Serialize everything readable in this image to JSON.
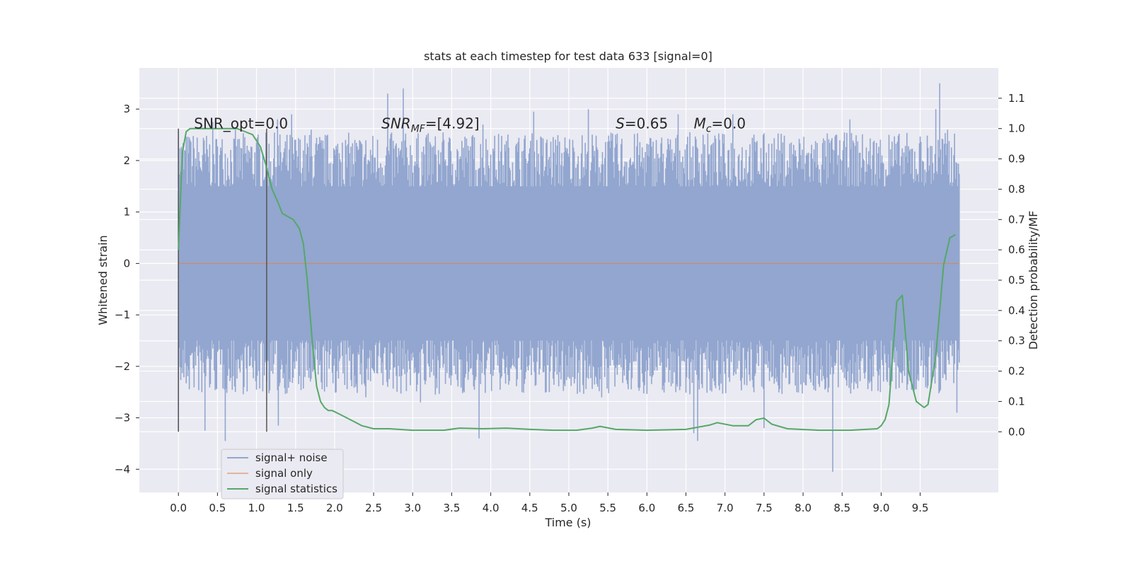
{
  "chart_data": {
    "type": "line",
    "title": "stats at each timestep for test data 633 [signal=0]",
    "xlabel": "Time (s)",
    "ylabel_left": "Whitened strain",
    "ylabel_right": "Detection probability/MF",
    "xlim": [
      -0.5,
      10.5
    ],
    "ylim_left": [
      -4.45,
      3.8
    ],
    "ylim_right": [
      -0.2,
      1.2
    ],
    "x_ticks": [
      "0.0",
      "0.5",
      "1.0",
      "1.5",
      "2.0",
      "2.5",
      "3.0",
      "3.5",
      "4.0",
      "4.5",
      "5.0",
      "5.5",
      "6.0",
      "6.5",
      "7.0",
      "7.5",
      "8.0",
      "8.5",
      "9.0",
      "9.5"
    ],
    "y_ticks_left": [
      "−4",
      "−3",
      "−2",
      "−1",
      "0",
      "1",
      "2",
      "3"
    ],
    "y_ticks_right": [
      "0.0",
      "0.1",
      "0.2",
      "0.3",
      "0.4",
      "0.5",
      "0.6",
      "0.7",
      "0.8",
      "0.9",
      "1.0",
      "1.1"
    ],
    "grid": true,
    "legend_position": "lower-left",
    "series": [
      {
        "name": "signal+ noise",
        "axis": "left",
        "color": "#92a6cf",
        "x_range": [
          0.0,
          10.0
        ],
        "typical_band": [
          -1.5,
          1.5
        ],
        "peaks": [
          [
            0.0,
            2.6
          ],
          [
            0.0,
            -3.25
          ],
          [
            0.15,
            2.4
          ],
          [
            0.3,
            -2.5
          ],
          [
            0.34,
            -3.25
          ],
          [
            0.44,
            2.75
          ],
          [
            0.6,
            -3.45
          ],
          [
            0.73,
            2.6
          ],
          [
            0.9,
            2.2
          ],
          [
            1.15,
            -1.9
          ],
          [
            1.27,
            2.8
          ],
          [
            1.28,
            -3.15
          ],
          [
            1.45,
            2.9
          ],
          [
            1.7,
            2.6
          ],
          [
            2.1,
            2.35
          ],
          [
            2.4,
            -2.6
          ],
          [
            2.68,
            3.3
          ],
          [
            2.88,
            3.4
          ],
          [
            2.7,
            -2.2
          ],
          [
            3.1,
            -2.7
          ],
          [
            3.4,
            2.4
          ],
          [
            3.85,
            -3.4
          ],
          [
            3.9,
            2.7
          ],
          [
            4.4,
            -2.5
          ],
          [
            4.55,
            2.95
          ],
          [
            4.75,
            -2.5
          ],
          [
            5.25,
            3.0
          ],
          [
            5.42,
            -2.6
          ],
          [
            5.6,
            2.5
          ],
          [
            6.0,
            -2.5
          ],
          [
            6.4,
            2.9
          ],
          [
            6.65,
            -3.45
          ],
          [
            6.6,
            -3.3
          ],
          [
            6.72,
            2.5
          ],
          [
            7.1,
            2.9
          ],
          [
            7.5,
            -3.2
          ],
          [
            7.9,
            2.2
          ],
          [
            8.38,
            -4.05
          ],
          [
            8.42,
            2.5
          ],
          [
            8.6,
            2.8
          ],
          [
            9.1,
            2.5
          ],
          [
            9.42,
            -2.5
          ],
          [
            9.7,
            3.0
          ],
          [
            9.75,
            3.5
          ],
          [
            9.85,
            2.6
          ],
          [
            9.97,
            -2.9
          ]
        ]
      },
      {
        "name": "signal only",
        "axis": "left",
        "color": "#dd8452",
        "x": [
          0.0,
          10.0
        ],
        "y": [
          0.0,
          0.0
        ]
      },
      {
        "name": "signal statistics",
        "axis": "right",
        "color": "#55a868",
        "x": [
          0.0,
          0.05,
          0.1,
          0.15,
          0.25,
          0.35,
          0.45,
          0.55,
          0.65,
          0.75,
          0.85,
          0.95,
          1.05,
          1.12,
          1.2,
          1.27,
          1.33,
          1.4,
          1.47,
          1.55,
          1.6,
          1.65,
          1.72,
          1.77,
          1.82,
          1.87,
          1.92,
          1.97,
          2.05,
          2.2,
          2.35,
          2.5,
          2.7,
          3.0,
          3.4,
          3.6,
          3.9,
          4.2,
          4.5,
          4.8,
          5.1,
          5.3,
          5.4,
          5.6,
          6.0,
          6.5,
          6.8,
          6.9,
          7.1,
          7.3,
          7.4,
          7.5,
          7.6,
          7.8,
          8.2,
          8.6,
          8.95,
          9.0,
          9.05,
          9.1,
          9.2,
          9.27,
          9.35,
          9.45,
          9.5,
          9.55,
          9.6,
          9.7,
          9.8,
          9.88,
          9.95
        ],
        "y": [
          0.6,
          0.92,
          0.99,
          1.0,
          1.0,
          1.0,
          1.0,
          1.0,
          1.0,
          1.0,
          0.99,
          0.98,
          0.94,
          0.88,
          0.8,
          0.76,
          0.72,
          0.71,
          0.7,
          0.67,
          0.62,
          0.5,
          0.28,
          0.15,
          0.1,
          0.08,
          0.07,
          0.07,
          0.06,
          0.04,
          0.02,
          0.01,
          0.01,
          0.005,
          0.005,
          0.012,
          0.01,
          0.012,
          0.008,
          0.005,
          0.005,
          0.012,
          0.018,
          0.008,
          0.005,
          0.008,
          0.022,
          0.03,
          0.02,
          0.02,
          0.04,
          0.045,
          0.025,
          0.01,
          0.005,
          0.005,
          0.01,
          0.02,
          0.04,
          0.09,
          0.43,
          0.45,
          0.2,
          0.1,
          0.09,
          0.08,
          0.09,
          0.25,
          0.55,
          0.64,
          0.65
        ]
      }
    ],
    "vertical_lines": [
      0.0,
      1.13
    ],
    "annotations": [
      {
        "text_main": "SNR_opt=0.0",
        "x": 0.2
      },
      {
        "text_main": "SNR",
        "text_sub": "MF",
        "text_rest": "=[4.92]",
        "italic_main": true,
        "x": 2.6
      },
      {
        "text_main": "S",
        "text_rest": "=0.65",
        "italic_main": true,
        "x": 5.6
      },
      {
        "text_main": "M",
        "text_sub": "c",
        "text_rest": "=0.0",
        "italic_main": true,
        "x": 6.6
      }
    ]
  }
}
